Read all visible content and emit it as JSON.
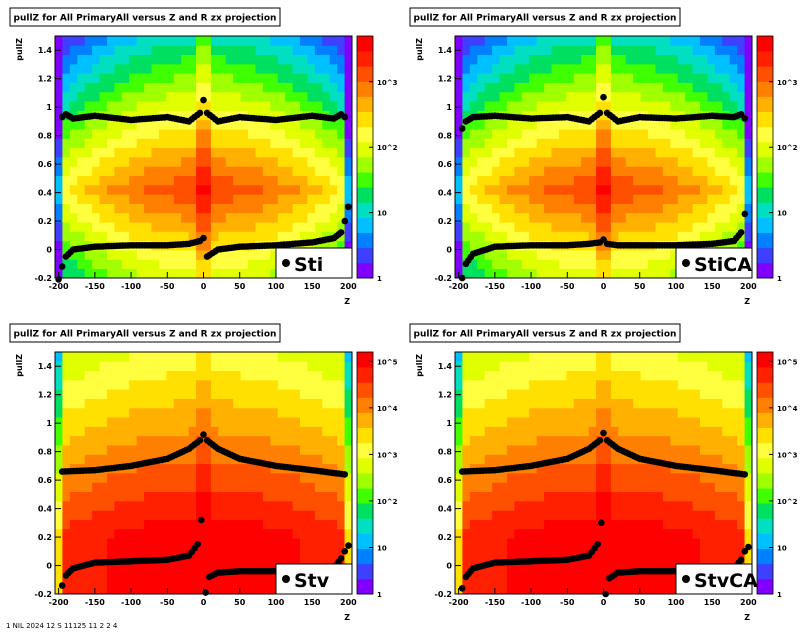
{
  "page": {
    "footer_text": "1 NIL 2024 12 S 11125 11 2 2 4"
  },
  "chart_data": [
    {
      "type": "heatmap",
      "title": "pullZ for All PrimaryAll versus Z and R zx projection",
      "xlabel": "Z",
      "ylabel": "pullZ",
      "xlim": [
        -205,
        205
      ],
      "ylim": [
        -0.2,
        1.5
      ],
      "x_ticks": [
        "-200",
        "-150",
        "-100",
        "-50",
        "0",
        "50",
        "100",
        "150",
        "200"
      ],
      "y_ticks": [
        "-0.2",
        "0",
        "0.2",
        "0.4",
        "0.6",
        "0.8",
        "1",
        "1.2",
        "1.4"
      ],
      "colorbar_ticks": [
        "1",
        "10",
        "10^2",
        "10^3"
      ],
      "colorbar_log_max": 3.7,
      "legend": "Sti",
      "profile": "sti",
      "series": [
        {
          "values": {
            "x": [
              -200,
              -195,
              -190,
              -180,
              -150,
              -100,
              -50,
              -20,
              -5,
              0,
              5,
              20,
              50,
              100,
              150,
              180,
              190,
              195,
              200
            ],
            "y": [
              -0.21,
              -0.12,
              -0.05,
              0.0,
              0.02,
              0.03,
              0.03,
              0.04,
              0.06,
              0.08,
              -0.05,
              0.0,
              0.02,
              0.03,
              0.05,
              0.08,
              0.12,
              0.2,
              0.3
            ]
          }
        },
        {
          "values": {
            "x": [
              -195,
              -190,
              -180,
              -150,
              -100,
              -50,
              -20,
              -5,
              0,
              5,
              20,
              50,
              100,
              150,
              180,
              190,
              195
            ],
            "y": [
              0.93,
              0.95,
              0.92,
              0.94,
              0.91,
              0.93,
              0.9,
              0.96,
              1.05,
              0.96,
              0.9,
              0.93,
              0.91,
              0.94,
              0.92,
              0.95,
              0.93
            ]
          }
        }
      ]
    },
    {
      "type": "heatmap",
      "title": "pullZ for All PrimaryAll versus Z and R zx projection",
      "xlabel": "Z",
      "ylabel": "pullZ",
      "xlim": [
        -205,
        205
      ],
      "ylim": [
        -0.2,
        1.5
      ],
      "x_ticks": [
        "-200",
        "-150",
        "-100",
        "-50",
        "0",
        "50",
        "100",
        "150",
        "200"
      ],
      "y_ticks": [
        "-0.2",
        "0",
        "0.2",
        "0.4",
        "0.6",
        "0.8",
        "1",
        "1.2",
        "1.4"
      ],
      "colorbar_ticks": [
        "1",
        "10",
        "10^2",
        "10^3"
      ],
      "colorbar_log_max": 3.7,
      "legend": "StiCA",
      "profile": "sti",
      "series": [
        {
          "values": {
            "x": [
              -195,
              -190,
              -180,
              -150,
              -100,
              -50,
              -20,
              -5,
              0,
              5,
              20,
              50,
              100,
              150,
              180,
              190,
              195
            ],
            "y": [
              -0.2,
              -0.1,
              -0.03,
              0.02,
              0.03,
              0.03,
              0.04,
              0.05,
              0.07,
              0.04,
              0.03,
              0.03,
              0.03,
              0.04,
              0.06,
              0.12,
              0.25
            ]
          }
        },
        {
          "values": {
            "x": [
              -195,
              -190,
              -180,
              -150,
              -100,
              -50,
              -20,
              -5,
              0,
              5,
              20,
              50,
              100,
              150,
              180,
              190,
              195
            ],
            "y": [
              0.85,
              0.9,
              0.93,
              0.94,
              0.92,
              0.93,
              0.9,
              0.96,
              1.07,
              0.96,
              0.9,
              0.93,
              0.92,
              0.94,
              0.93,
              0.95,
              0.92
            ]
          }
        }
      ]
    },
    {
      "type": "heatmap",
      "title": "pullZ for All PrimaryAll versus Z and R zx projection",
      "xlabel": "Z",
      "ylabel": "pullZ",
      "xlim": [
        -205,
        205
      ],
      "ylim": [
        -0.2,
        1.5
      ],
      "x_ticks": [
        "-200",
        "-150",
        "-100",
        "-50",
        "0",
        "50",
        "100",
        "150",
        "200"
      ],
      "y_ticks": [
        "-0.2",
        "0",
        "0.2",
        "0.4",
        "0.6",
        "0.8",
        "1",
        "1.2",
        "1.4"
      ],
      "colorbar_ticks": [
        "1",
        "10",
        "10^2",
        "10^3",
        "10^4",
        "10^5"
      ],
      "colorbar_log_max": 5.2,
      "legend": "Stv",
      "profile": "stv",
      "series": [
        {
          "values": {
            "x": [
              -195,
              -190,
              -180,
              -150,
              -100,
              -50,
              -20,
              -8,
              -3
            ],
            "y": [
              -0.14,
              -0.07,
              -0.02,
              0.02,
              0.03,
              0.04,
              0.07,
              0.15,
              0.32
            ]
          }
        },
        {
          "values": {
            "x": [
              3,
              8,
              20,
              50,
              100,
              150,
              180,
              190,
              195,
              200
            ],
            "y": [
              -0.19,
              -0.08,
              -0.05,
              -0.04,
              -0.04,
              -0.04,
              -0.02,
              0.05,
              0.1,
              0.14
            ]
          }
        },
        {
          "values": {
            "x": [
              -195,
              -150,
              -100,
              -50,
              -20,
              -5,
              0,
              5,
              20,
              50,
              100,
              150,
              195
            ],
            "y": [
              0.66,
              0.67,
              0.7,
              0.75,
              0.82,
              0.88,
              0.92,
              0.88,
              0.82,
              0.75,
              0.7,
              0.67,
              0.64
            ]
          }
        }
      ]
    },
    {
      "type": "heatmap",
      "title": "pullZ for All PrimaryAll versus Z and R zx projection",
      "xlabel": "Z",
      "ylabel": "pullZ",
      "xlim": [
        -205,
        205
      ],
      "ylim": [
        -0.2,
        1.5
      ],
      "x_ticks": [
        "-200",
        "-150",
        "-100",
        "-50",
        "0",
        "50",
        "100",
        "150",
        "200"
      ],
      "y_ticks": [
        "-0.2",
        "0",
        "0.2",
        "0.4",
        "0.6",
        "0.8",
        "1",
        "1.2",
        "1.4"
      ],
      "colorbar_ticks": [
        "1",
        "10",
        "10^2",
        "10^3",
        "10^4",
        "10^5"
      ],
      "colorbar_log_max": 5.2,
      "legend": "StvCA",
      "profile": "stv",
      "series": [
        {
          "values": {
            "x": [
              -195,
              -190,
              -180,
              -150,
              -100,
              -50,
              -20,
              -8,
              -3
            ],
            "y": [
              -0.16,
              -0.08,
              -0.02,
              0.02,
              0.03,
              0.04,
              0.07,
              0.15,
              0.3
            ]
          }
        },
        {
          "values": {
            "x": [
              3,
              8,
              20,
              50,
              100,
              150,
              180,
              190,
              195,
              200
            ],
            "y": [
              -0.2,
              -0.09,
              -0.05,
              -0.04,
              -0.04,
              -0.04,
              -0.02,
              0.04,
              0.1,
              0.13
            ]
          }
        },
        {
          "values": {
            "x": [
              -195,
              -150,
              -100,
              -50,
              -20,
              -5,
              0,
              5,
              20,
              50,
              100,
              150,
              195
            ],
            "y": [
              0.66,
              0.67,
              0.7,
              0.75,
              0.82,
              0.88,
              0.93,
              0.88,
              0.82,
              0.75,
              0.7,
              0.67,
              0.64
            ]
          }
        }
      ]
    }
  ]
}
